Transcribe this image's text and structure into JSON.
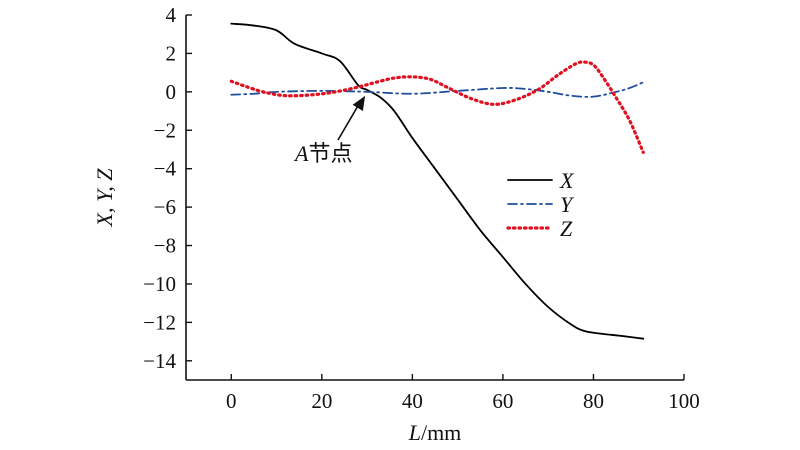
{
  "chart_data": {
    "type": "line",
    "xlabel_var": "L",
    "xlabel_unit": "/mm",
    "ylabel": "X, Y, Z",
    "xlim": [
      -10,
      100
    ],
    "ylim": [
      -15,
      4
    ],
    "xticks": [
      0,
      20,
      40,
      60,
      80,
      100
    ],
    "xtick_labels": [
      "0",
      "20",
      "40",
      "60",
      "80",
      "100"
    ],
    "yticks": [
      4,
      2,
      0,
      -2,
      -4,
      -6,
      -8,
      -10,
      -12,
      -14
    ],
    "ytick_labels": [
      "4",
      "2",
      "0",
      "−2",
      "−4",
      "−6",
      "−8",
      "−10",
      "−12",
      "−14"
    ],
    "grid": false,
    "legend_position": "right-middle",
    "series": [
      {
        "name": "X",
        "color": "#000000",
        "style": "solid",
        "x": [
          0,
          5,
          10,
          14,
          20,
          24,
          28,
          30,
          33,
          36,
          40,
          45,
          50,
          55,
          60,
          65,
          70,
          75,
          78,
          82,
          86,
          91
        ],
        "y": [
          3.55,
          3.45,
          3.2,
          2.5,
          2.0,
          1.6,
          0.35,
          0.1,
          -0.3,
          -1.0,
          -2.4,
          -4.0,
          -5.6,
          -7.2,
          -8.6,
          -10.0,
          -11.2,
          -12.1,
          -12.45,
          -12.6,
          -12.7,
          -12.85
        ]
      },
      {
        "name": "Y",
        "color": "#1f4e9e",
        "style": "dashdot",
        "x": [
          0,
          5,
          10,
          20,
          30,
          40,
          50,
          60,
          65,
          70,
          75,
          80,
          85,
          88,
          91
        ],
        "y": [
          -0.15,
          -0.1,
          0.0,
          0.05,
          0.0,
          -0.1,
          0.05,
          0.2,
          0.15,
          0.0,
          -0.2,
          -0.25,
          0.0,
          0.2,
          0.5
        ]
      },
      {
        "name": "Z",
        "color": "#e0101e",
        "style": "dotted",
        "x": [
          0,
          3,
          7,
          12,
          18,
          23,
          28,
          32,
          36,
          40,
          44,
          48,
          53,
          58,
          63,
          68,
          72,
          76,
          78,
          80,
          82,
          85,
          88,
          91
        ],
        "y": [
          0.55,
          0.3,
          0.0,
          -0.2,
          -0.15,
          0.0,
          0.25,
          0.5,
          0.72,
          0.78,
          0.65,
          0.2,
          -0.35,
          -0.65,
          -0.4,
          0.15,
          0.85,
          1.45,
          1.55,
          1.4,
          0.8,
          -0.3,
          -1.5,
          -3.15
        ]
      }
    ],
    "annotation": {
      "var": "A",
      "text": "节点",
      "target_x": 30,
      "target_y": 0.1
    }
  }
}
